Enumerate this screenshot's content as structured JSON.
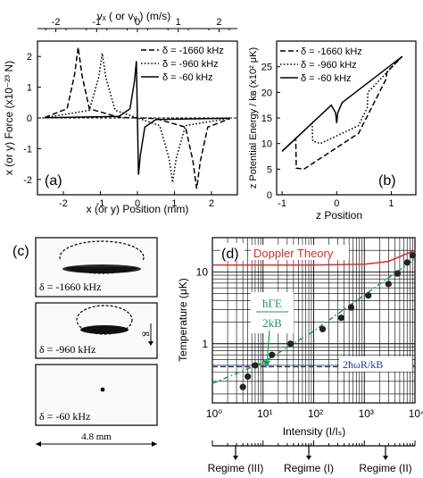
{
  "panel_a": {
    "label": "(a)",
    "top_axis_label": "vₓ ( or vᵧ ) (m/s)",
    "top_ticks": [
      "-2",
      "-1",
      "0",
      "1",
      "2"
    ],
    "xlabel": "x (or y) Position (mm)",
    "ylabel": "x (or y) Force (x10⁻²³ N)",
    "xticks": [
      "-2",
      "-1",
      "0",
      "1",
      "2"
    ],
    "yticks": [
      "2",
      "1",
      "0",
      "-1",
      "-2"
    ],
    "legend": [
      "δ = -1660 kHz",
      "δ = -960 kHz",
      "δ = -60 kHz"
    ]
  },
  "panel_b": {
    "label": "(b)",
    "xlabel": "z Position",
    "ylabel": "z Potential Energy / kʙ (x10² μK)",
    "xticks": [
      "-1",
      "0",
      "1"
    ],
    "yticks": [
      "25",
      "20",
      "15",
      "10",
      "5",
      "0"
    ],
    "legend": [
      "δ = -1660 kHz",
      "δ = -960 kHz",
      "δ = -60 kHz"
    ]
  },
  "panel_c": {
    "label": "(c)",
    "images": [
      {
        "caption": "δ = -1660 kHz"
      },
      {
        "caption": "δ = -960 kHz"
      },
      {
        "caption": "δ = -60 kHz"
      }
    ],
    "gravity_label": "g",
    "scale_label": "4.8 mm"
  },
  "panel_d": {
    "label": "(d)",
    "doppler_label": "Doppler Theory",
    "fraction_top": "ħΓE",
    "fraction_bottom": "2kB",
    "recoil_label": "2ħωR/kB",
    "xlabel": "Intensity (I/Iₛ)",
    "ylabel": "Temperature (μK)",
    "xticks": [
      "10⁰",
      "10¹",
      "10²",
      "10³",
      "10⁴"
    ],
    "yticks": [
      "10",
      "1"
    ],
    "regimes": [
      "Regime (III)",
      "Regime (I)",
      "Regime (II)"
    ]
  },
  "colors": {
    "doppler": "#d62d2d",
    "linewidth": "#1a9a5a",
    "recoil": "#2b3a8f"
  },
  "chart_data": [
    {
      "type": "line",
      "panel": "a",
      "x_unit": "mm",
      "xlim": [
        -2.7,
        2.7
      ],
      "ylim": [
        -2.5,
        2.5
      ],
      "series": [
        {
          "name": "δ = -1660 kHz",
          "style": "dash",
          "x": [
            -2.5,
            -1.9,
            -1.7,
            -1.6,
            -1.5,
            -1.3,
            -0.5,
            0,
            0.5,
            1.3,
            1.5,
            1.6,
            1.7,
            1.9,
            2.5
          ],
          "y": [
            0.02,
            0.3,
            1.4,
            2.3,
            1.4,
            0.3,
            0.02,
            0,
            -0.02,
            -0.3,
            -1.4,
            -2.3,
            -1.4,
            -0.3,
            -0.02
          ]
        },
        {
          "name": "δ = -960 kHz",
          "style": "dot",
          "x": [
            -2.5,
            -1.3,
            -1.05,
            -0.95,
            -0.85,
            -0.6,
            0,
            0.6,
            0.85,
            0.95,
            1.05,
            1.3,
            2.5
          ],
          "y": [
            0.01,
            0.25,
            1.3,
            2.1,
            1.3,
            0.25,
            0,
            -0.25,
            -1.3,
            -2.1,
            -1.3,
            -0.25,
            -0.01
          ]
        },
        {
          "name": "δ = -60 kHz",
          "style": "solid",
          "x": [
            -2.5,
            -0.5,
            -0.2,
            -0.08,
            -0.03,
            0,
            0.03,
            0.08,
            0.2,
            0.5,
            2.5
          ],
          "y": [
            0.01,
            0.05,
            0.3,
            1.2,
            1.85,
            0,
            -1.85,
            -1.2,
            -0.3,
            -0.05,
            -0.01
          ]
        }
      ]
    },
    {
      "type": "line",
      "panel": "b",
      "xlim": [
        -1.1,
        1.45
      ],
      "ylim": [
        0,
        30
      ],
      "series": [
        {
          "name": "δ = -1660 kHz",
          "style": "dash",
          "x": [
            -1.0,
            -0.75,
            -0.74,
            -0.6,
            0.4,
            0.9,
            0.92,
            1.2
          ],
          "y": [
            8.5,
            11.0,
            5.2,
            5.0,
            12.0,
            22.5,
            24.0,
            27.0
          ]
        },
        {
          "name": "δ = -960 kHz",
          "style": "dot",
          "x": [
            -1.0,
            -0.45,
            -0.44,
            -0.3,
            0.4,
            0.56,
            0.57,
            1.2
          ],
          "y": [
            8.5,
            14.0,
            10.5,
            10.0,
            13.5,
            17.0,
            20.0,
            27.0
          ]
        },
        {
          "name": "δ = -60 kHz",
          "style": "solid",
          "x": [
            -1.0,
            -0.1,
            -0.02,
            0,
            0.02,
            0.1,
            1.2
          ],
          "y": [
            8.5,
            17.5,
            16.0,
            14.0,
            16.0,
            18.0,
            27.0
          ]
        }
      ]
    },
    {
      "type": "scatter",
      "panel": "d",
      "x_scale": "log",
      "y_scale": "log",
      "xlim": [
        1,
        10000
      ],
      "ylim": [
        0.15,
        30
      ],
      "series": [
        {
          "name": "data",
          "x": [
            4,
            5,
            7,
            15,
            35,
            150,
            350,
            550,
            1200,
            3000,
            4500,
            7000,
            9000
          ],
          "y": [
            0.25,
            0.35,
            0.5,
            0.7,
            1.0,
            1.6,
            2.3,
            3.2,
            4.7,
            6.8,
            9.5,
            13.5,
            17.0
          ]
        },
        {
          "name": "Doppler Theory",
          "style": "solid",
          "x": [
            1,
            100,
            1000,
            3000,
            10000
          ],
          "y": [
            12.5,
            12.5,
            12.8,
            14.0,
            20.0
          ]
        },
        {
          "name": "linewidth",
          "style": "dashdot",
          "x": [
            1,
            10,
            100,
            1000,
            10000
          ],
          "y": [
            0.28,
            0.55,
            1.5,
            4.8,
            15.0
          ]
        },
        {
          "name": "recoil",
          "style": "dash",
          "x": [
            1,
            10000
          ],
          "y": [
            0.48,
            0.48
          ]
        }
      ]
    }
  ]
}
